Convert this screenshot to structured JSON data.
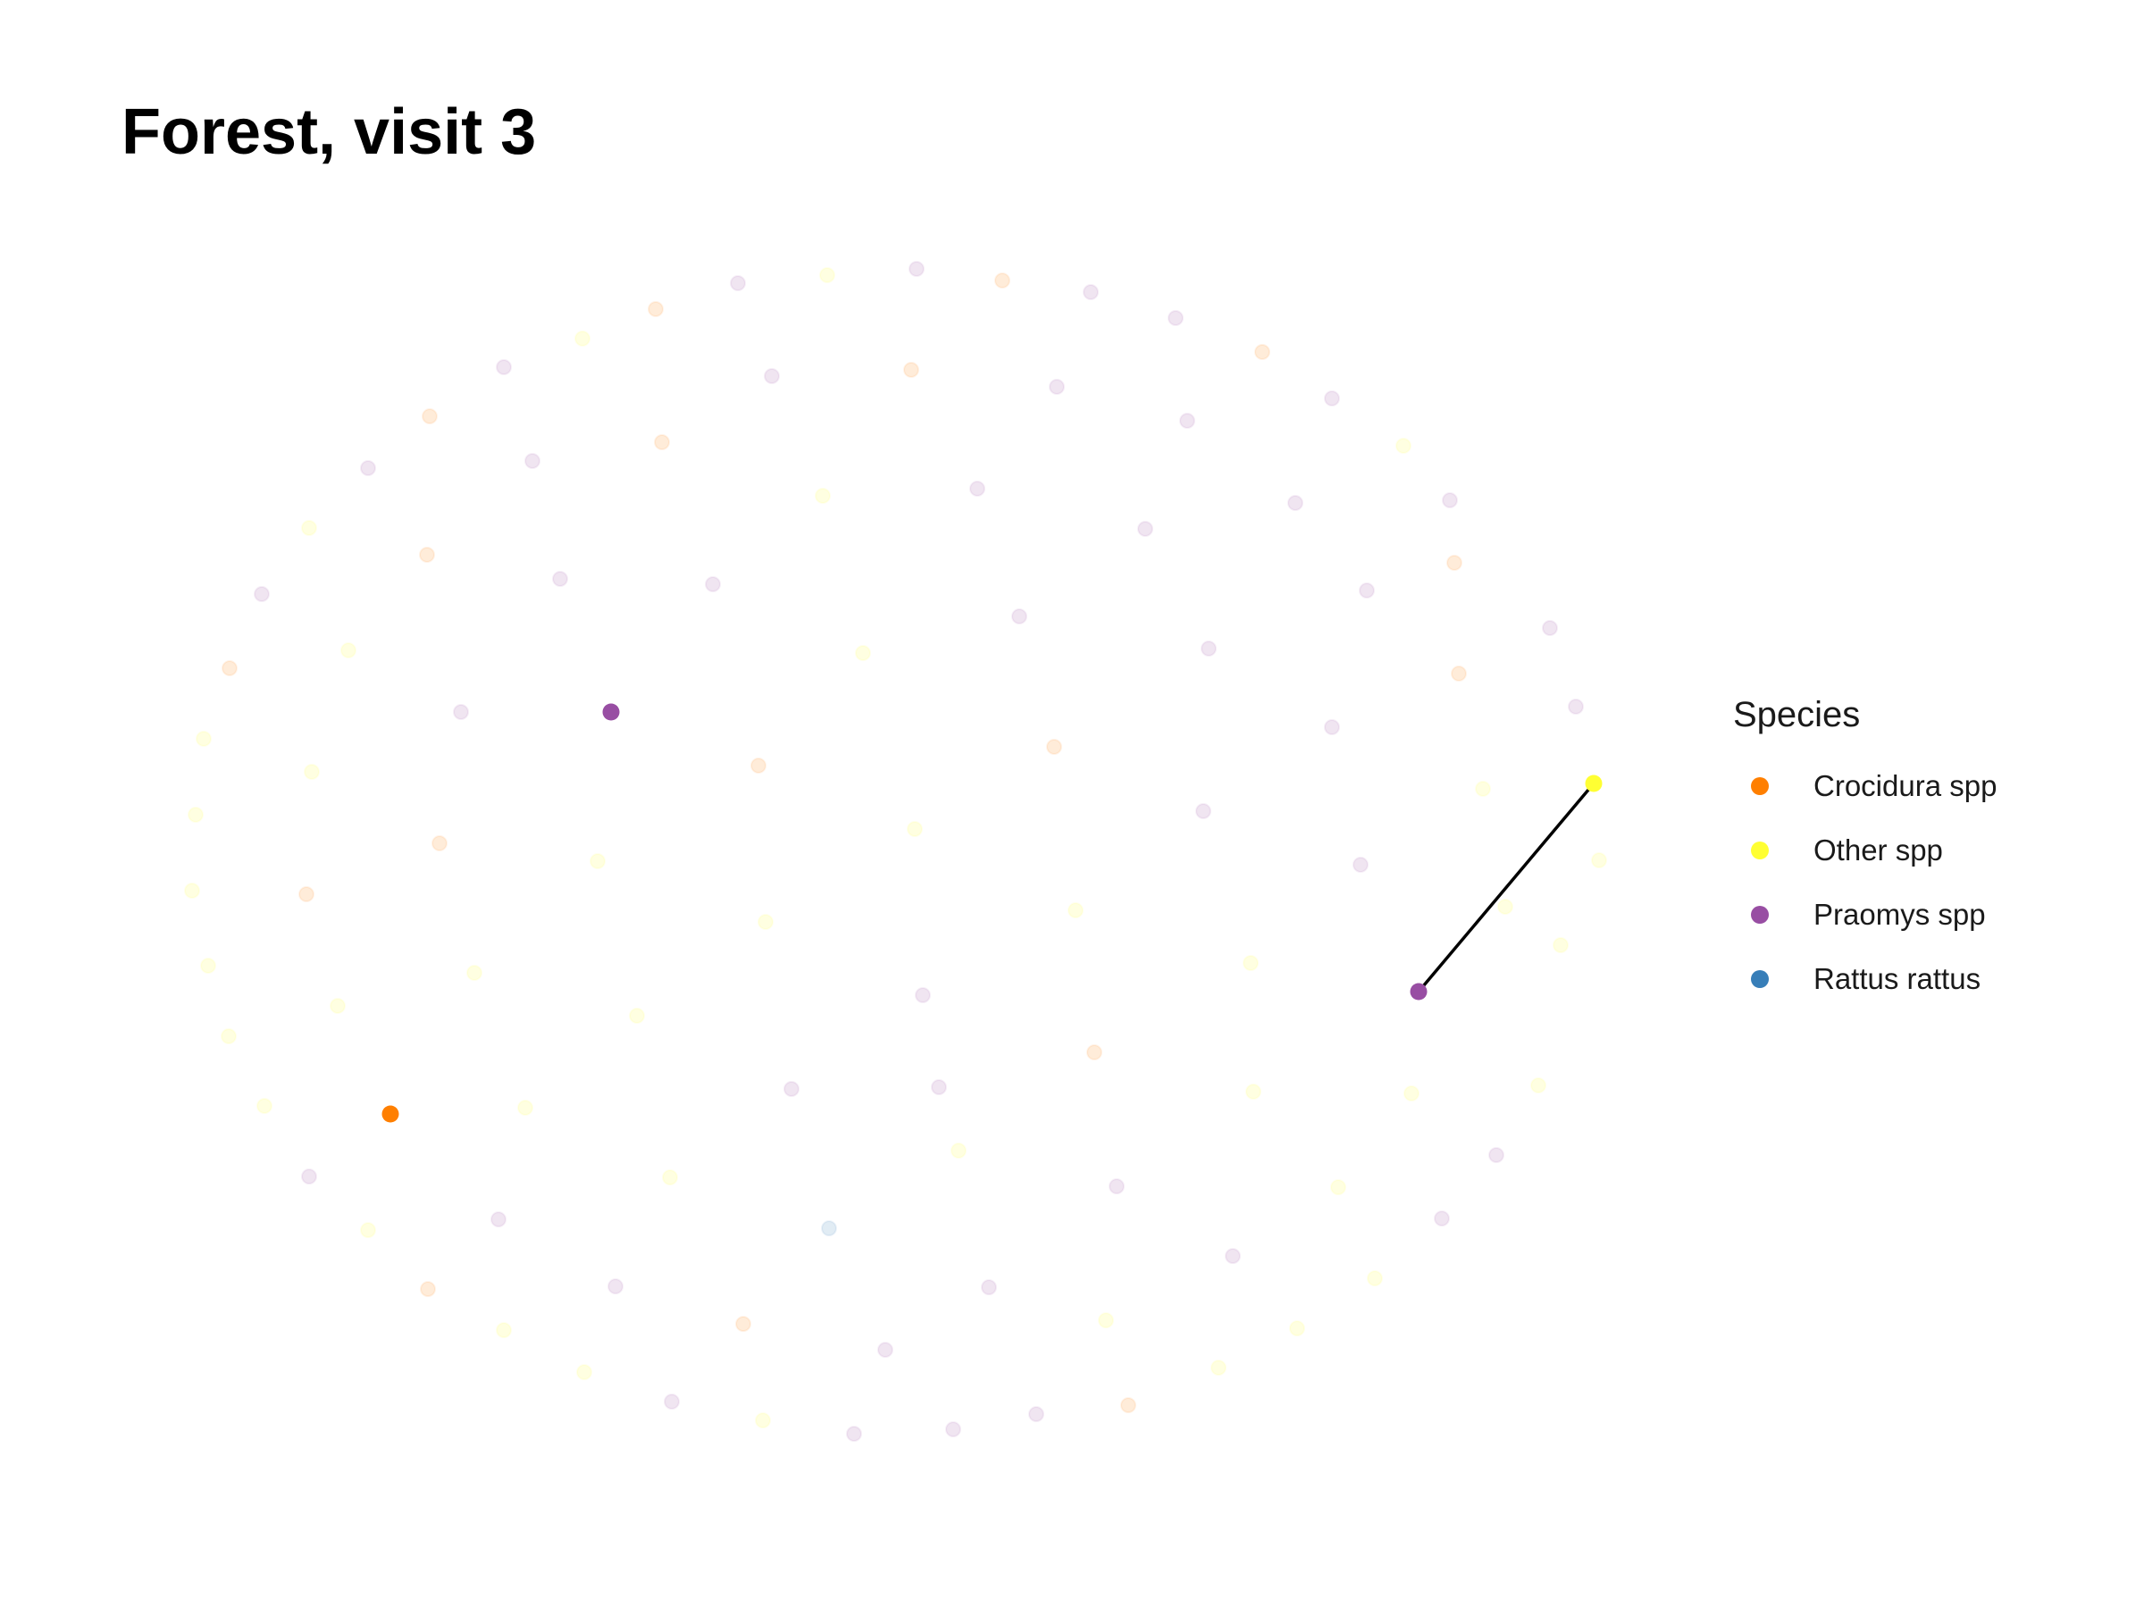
{
  "title": "Forest, visit 3",
  "legend": {
    "title": "Species",
    "items": [
      {
        "label": "Crocidura spp",
        "color": "#ff7f00"
      },
      {
        "label": "Other spp",
        "color": "#ffff33"
      },
      {
        "label": "Praomys spp",
        "color": "#984ea3"
      },
      {
        "label": "Rattus rattus",
        "color": "#377eb8"
      }
    ]
  },
  "network": {
    "faded_opacity": 0.15,
    "highlighted_node_count": 4,
    "edge_count": 1
  }
}
